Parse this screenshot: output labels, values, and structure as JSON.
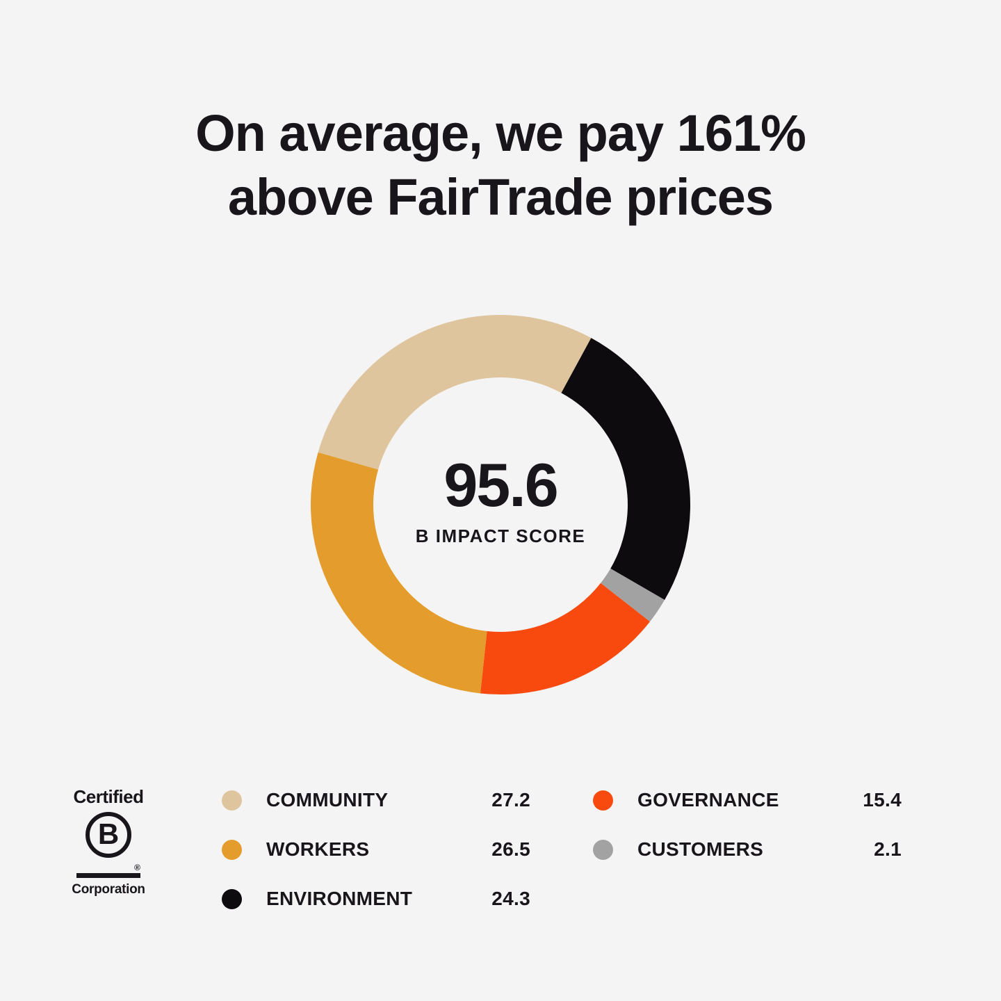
{
  "background_color": "#F5F4F5",
  "text_color": "#18161B",
  "title": {
    "line1": "On average, we pay 161%",
    "line2": "above FairTrade prices"
  },
  "chart_data": {
    "type": "pie",
    "variant": "donut",
    "center_value": "95.6",
    "center_label": "B IMPACT SCORE",
    "total": 95.5,
    "start_angle_deg": -74,
    "direction": "clockwise",
    "segment_order_clockwise": [
      "COMMUNITY",
      "ENVIRONMENT",
      "CUSTOMERS",
      "GOVERNANCE",
      "WORKERS"
    ],
    "series": [
      {
        "name": "COMMUNITY",
        "value": 27.2,
        "color": "#DEC59D"
      },
      {
        "name": "WORKERS",
        "value": 26.5,
        "color": "#E49C2C"
      },
      {
        "name": "ENVIRONMENT",
        "value": 24.3,
        "color": "#0D0B0D"
      },
      {
        "name": "GOVERNANCE",
        "value": 15.4,
        "color": "#F8490F"
      },
      {
        "name": "CUSTOMERS",
        "value": 2.1,
        "color": "#A3A2A2"
      }
    ],
    "legend_position": "bottom"
  },
  "legend": {
    "columns": [
      {
        "items": [
          {
            "label": "COMMUNITY",
            "value": "27.2",
            "color": "#DEC59D"
          },
          {
            "label": "WORKERS",
            "value": "26.5",
            "color": "#E49C2C"
          },
          {
            "label": "ENVIRONMENT",
            "value": "24.3",
            "color": "#0D0B0D"
          }
        ]
      },
      {
        "items": [
          {
            "label": "GOVERNANCE",
            "value": "15.4",
            "color": "#F8490F"
          },
          {
            "label": "CUSTOMERS",
            "value": "2.1",
            "color": "#A3A2A2"
          }
        ]
      }
    ]
  },
  "bcorp_logo": {
    "certified": "Certified",
    "letter": "B",
    "registered": "®",
    "corporation": "Corporation"
  }
}
